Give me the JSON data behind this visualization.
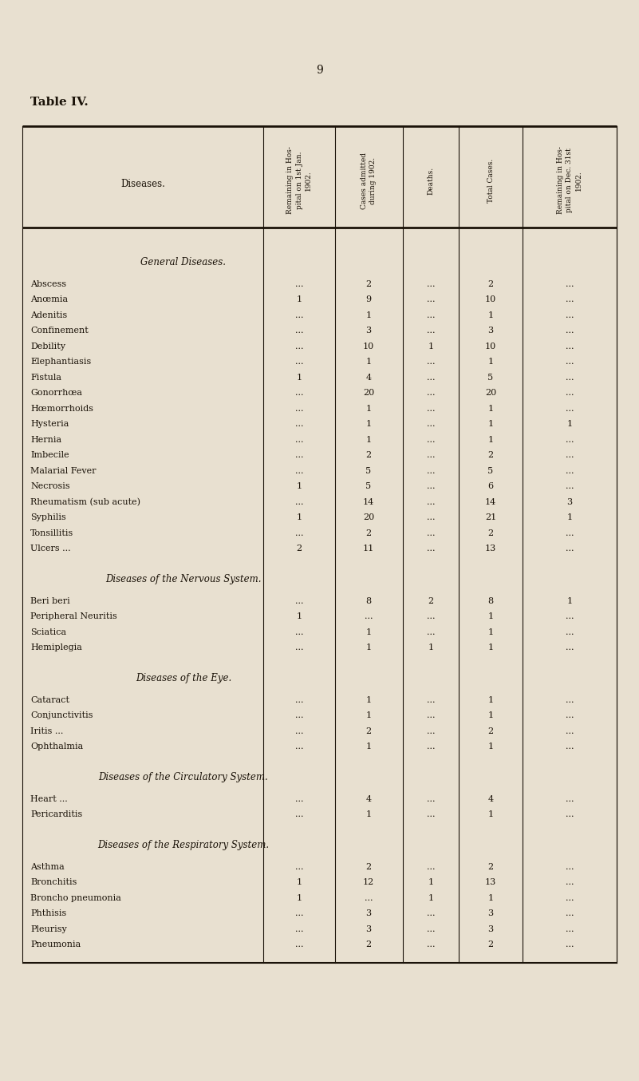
{
  "page_number": "9",
  "title": "Table IV.",
  "bg_color": "#e8e0d0",
  "text_color": "#1a1208",
  "col_headers": [
    "Remaining in Hos-\npital on 1st Jan.\n1902.",
    "Cases admitted\nduring 1902.",
    "Deaths.",
    "Total Cases.",
    "Remaining in Hos-\npital on Dec. 31st\n1902."
  ],
  "col_label": "Diseases.",
  "sections": [
    {
      "section_title": "General Diseases.",
      "italic": true,
      "rows": [
        [
          "Abscess",
          "...",
          "2",
          "...",
          "2",
          "..."
        ],
        [
          "Anœmia",
          "1",
          "9",
          "...",
          "10",
          "..."
        ],
        [
          "Adenitis",
          "...",
          "1",
          "...",
          "1",
          "..."
        ],
        [
          "Confinement",
          "...",
          "3",
          "...",
          "3",
          "..."
        ],
        [
          "Debility",
          "...",
          "10",
          "1",
          "10",
          "..."
        ],
        [
          "Elephantiasis",
          "...",
          "1",
          "...",
          "1",
          "..."
        ],
        [
          "Fistula",
          "1",
          "4",
          "...",
          "5",
          "..."
        ],
        [
          "Gonorrhœa",
          "...",
          "20",
          "...",
          "20",
          "..."
        ],
        [
          "Hœmorrhoids",
          "...",
          "1",
          "...",
          "1",
          "..."
        ],
        [
          "Hysteria",
          "...",
          "1",
          "...",
          "1",
          "1"
        ],
        [
          "Hernia",
          "...",
          "1",
          "...",
          "1",
          "..."
        ],
        [
          "Imbecile",
          "...",
          "2",
          "...",
          "2",
          "..."
        ],
        [
          "Malarial Fever",
          "...",
          "5",
          "...",
          "5",
          "..."
        ],
        [
          "Necrosis",
          "1",
          "5",
          "...",
          "6",
          "..."
        ],
        [
          "Rheumatism (sub acute)",
          "...",
          "14",
          "...",
          "14",
          "3"
        ],
        [
          "Syphilis",
          "1",
          "20",
          "...",
          "21",
          "1"
        ],
        [
          "Tonsillitis",
          "...",
          "2",
          "...",
          "2",
          "..."
        ],
        [
          "Ulcers ...",
          "2",
          "11",
          "...",
          "13",
          "..."
        ]
      ]
    },
    {
      "section_title": "Diseases of the Nervous System.",
      "italic": true,
      "rows": [
        [
          "Beri beri",
          "...",
          "8",
          "2",
          "8",
          "1"
        ],
        [
          "Peripheral Neuritis",
          "1",
          "...",
          "...",
          "1",
          "..."
        ],
        [
          "Sciatica",
          "...",
          "1",
          "...",
          "1",
          "..."
        ],
        [
          "Hemiplegia",
          "...",
          "1",
          "1",
          "1",
          "..."
        ]
      ]
    },
    {
      "section_title": "Diseases of the Eye.",
      "italic": true,
      "rows": [
        [
          "Cataract",
          "...",
          "1",
          "...",
          "1",
          "..."
        ],
        [
          "Conjunctivitis",
          "...",
          "1",
          "...",
          "1",
          "..."
        ],
        [
          "Iritis ...",
          "...",
          "2",
          "...",
          "2",
          "..."
        ],
        [
          "Ophthalmia",
          "...",
          "1",
          "...",
          "1",
          "..."
        ]
      ]
    },
    {
      "section_title": "Diseases of the Circulatory System.",
      "italic": true,
      "rows": [
        [
          "Heart ...",
          "...",
          "4",
          "...",
          "4",
          "..."
        ],
        [
          "Pericarditis",
          "...",
          "1",
          "...",
          "1",
          "..."
        ]
      ]
    },
    {
      "section_title": "Diseases of the Respiratory System.",
      "italic": true,
      "rows": [
        [
          "Asthma",
          "...",
          "2",
          "...",
          "2",
          "..."
        ],
        [
          "Bronchitis",
          "1",
          "12",
          "1",
          "13",
          "..."
        ],
        [
          "Broncho pneumonia",
          "1",
          "...",
          "1",
          "1",
          "..."
        ],
        [
          "Phthisis",
          "...",
          "3",
          "...",
          "3",
          "..."
        ],
        [
          "Pleurisy",
          "...",
          "3",
          "...",
          "3",
          "..."
        ],
        [
          "Pneumonia",
          "...",
          "2",
          "...",
          "2",
          "..."
        ]
      ]
    }
  ]
}
